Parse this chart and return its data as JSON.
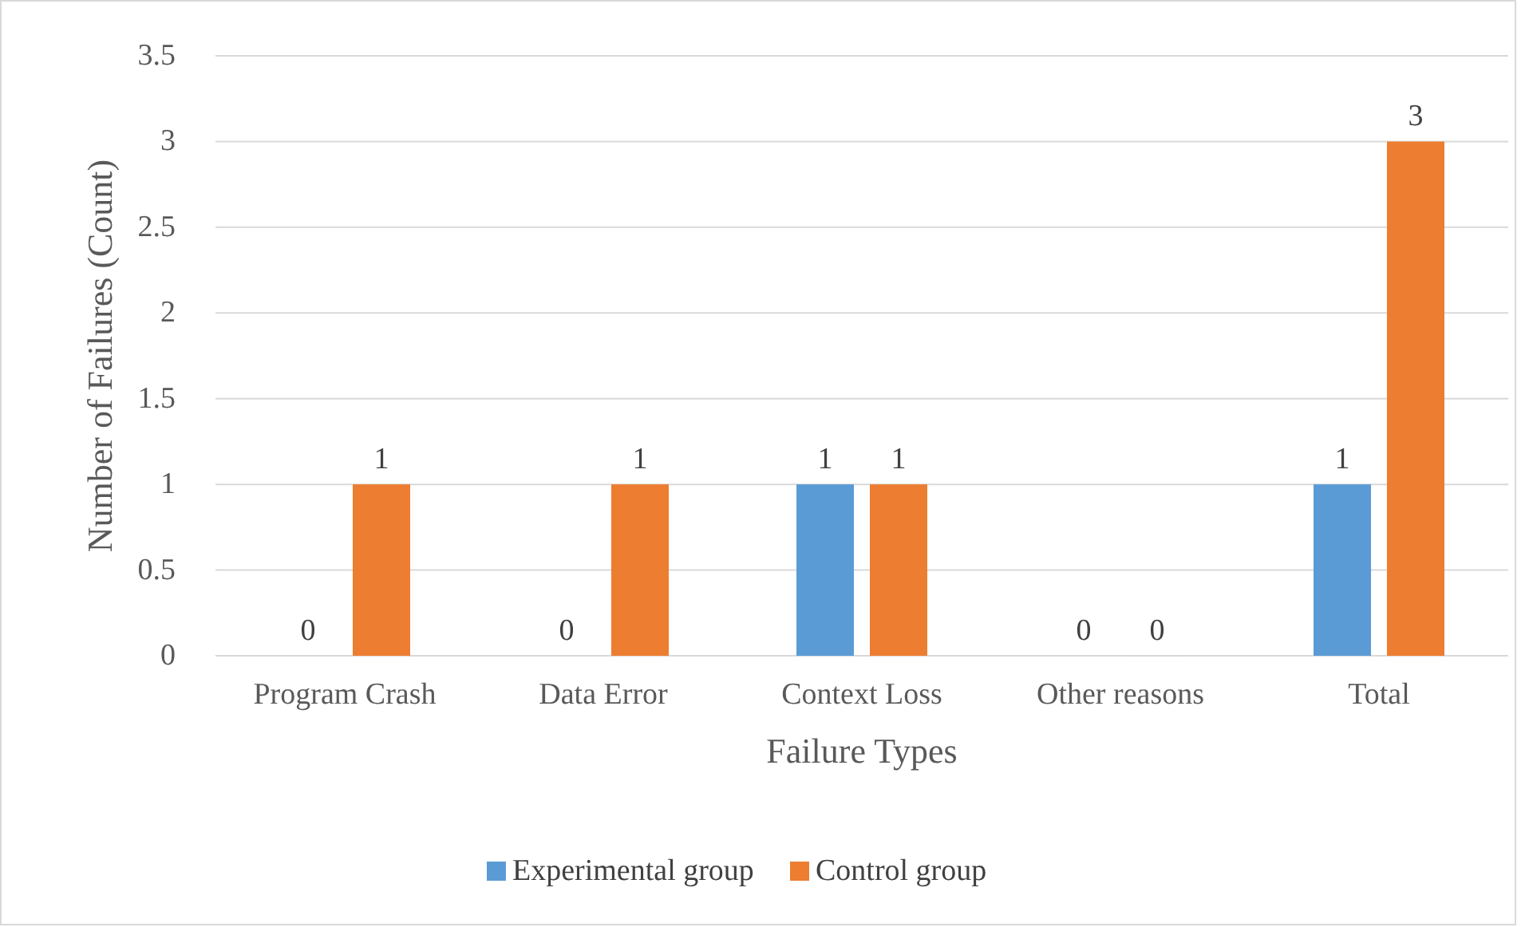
{
  "chart_data": {
    "type": "bar",
    "xlabel": "Failure Types",
    "ylabel": "Number of Failures (Count)",
    "categories": [
      "Program Crash",
      "Data Error",
      "Context Loss",
      "Other reasons",
      "Total"
    ],
    "series": [
      {
        "name": "Experimental group",
        "color": "#5b9bd5",
        "values": [
          0,
          0,
          1,
          0,
          1
        ]
      },
      {
        "name": "Control group",
        "color": "#ed7d31",
        "values": [
          1,
          1,
          1,
          0,
          3
        ]
      }
    ],
    "ylim": [
      0,
      3.5
    ],
    "yticks": [
      0,
      0.5,
      1,
      1.5,
      2,
      2.5,
      3,
      3.5
    ],
    "grid": "y",
    "data_labels": true,
    "legend": "bottom"
  }
}
